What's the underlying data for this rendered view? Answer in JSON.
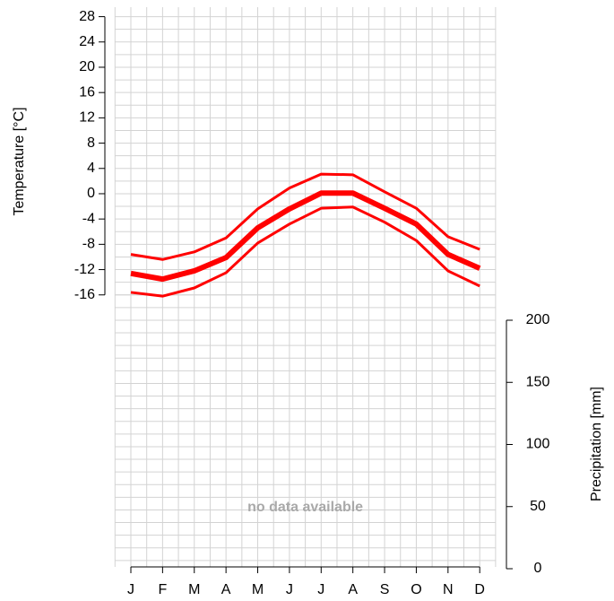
{
  "chart_data": {
    "type": "line",
    "ylabel": "Temperature [°C]",
    "y2label": "Precipitation [mm]",
    "annotation": "no data available",
    "categories": [
      "J",
      "F",
      "M",
      "A",
      "M",
      "J",
      "J",
      "A",
      "S",
      "O",
      "N",
      "D"
    ],
    "series": [
      {
        "color": "#ff0000",
        "values": [
          -12.6,
          -13.5,
          -12.2,
          -10.1,
          -5.4,
          -2.4,
          0.1,
          0.1,
          -2.3,
          -4.8,
          -9.6,
          -11.8
        ]
      },
      {
        "color": "#ff0000",
        "values": [
          -9.6,
          -10.4,
          -9.2,
          -7.0,
          -2.4,
          0.9,
          3.1,
          3.0,
          0.3,
          -2.3,
          -6.8,
          -8.8
        ]
      },
      {
        "color": "#ff0000",
        "values": [
          -15.6,
          -16.2,
          -14.9,
          -12.5,
          -7.8,
          -4.8,
          -2.3,
          -2.1,
          -4.5,
          -7.4,
          -12.2,
          -14.6
        ]
      }
    ],
    "ylim": [
      -59.3,
      29.5
    ],
    "yticks": [
      -16,
      -12,
      -8,
      -4,
      0,
      4,
      8,
      12,
      16,
      20,
      24,
      28
    ],
    "y2lim": [
      0,
      452
    ],
    "y2ticks": [
      0,
      50,
      100,
      150,
      200
    ],
    "grid": true
  }
}
